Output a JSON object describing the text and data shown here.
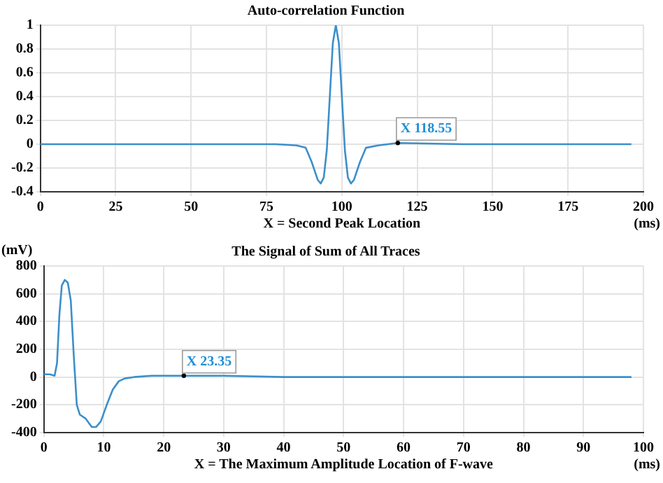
{
  "chart_data": [
    {
      "type": "line",
      "title": "Auto-correlation Function",
      "xlabel": "(ms)",
      "x": [
        0,
        20,
        40,
        60,
        78,
        85,
        88,
        90,
        92,
        93,
        94,
        95,
        96,
        97,
        98,
        99,
        100,
        101,
        102,
        103,
        104,
        106,
        108,
        112,
        118.55,
        140,
        170,
        196
      ],
      "series": [
        {
          "color": "#3b8fcb",
          "values": [
            0,
            0,
            0,
            0,
            0,
            -0.01,
            -0.03,
            -0.15,
            -0.3,
            -0.33,
            -0.28,
            -0.05,
            0.4,
            0.85,
            1.0,
            0.85,
            0.4,
            -0.05,
            -0.28,
            -0.33,
            -0.3,
            -0.15,
            -0.03,
            -0.01,
            0.01,
            0,
            0,
            0
          ]
        }
      ],
      "xlim": [
        0,
        200
      ],
      "xticks": [
        0,
        25,
        50,
        75,
        100,
        125,
        150,
        175,
        200
      ],
      "ylim": [
        -0.4,
        1
      ],
      "yticks": [
        -0.4,
        -0.2,
        0,
        0.2,
        0.4,
        0.6,
        0.8,
        1
      ],
      "grid": true,
      "legend": false,
      "marker": "none",
      "line_style": "solid",
      "annotations": [
        {
          "text": "X 118.55",
          "x": 118.55,
          "y": 0.01
        },
        "X = Second Peak Location"
      ]
    },
    {
      "type": "line",
      "title": "The Signal of Sum of All Traces",
      "xlabel": "(ms)",
      "ylabel": "(mV)",
      "x": [
        0,
        1,
        1.8,
        2.2,
        2.6,
        3,
        3.5,
        4,
        4.5,
        5,
        5.5,
        6,
        7,
        8,
        8.7,
        9.5,
        10.5,
        11.5,
        12.5,
        13.5,
        15,
        18,
        23.35,
        30,
        40,
        60,
        80,
        98
      ],
      "series": [
        {
          "color": "#3b8fcb",
          "values": [
            20,
            20,
            10,
            100,
            450,
            660,
            700,
            680,
            550,
            150,
            -200,
            -270,
            -300,
            -360,
            -360,
            -320,
            -200,
            -90,
            -30,
            -10,
            0,
            10,
            10,
            10,
            0,
            0,
            0,
            0
          ]
        }
      ],
      "xlim": [
        0,
        100
      ],
      "xticks": [
        0,
        10,
        20,
        30,
        40,
        50,
        60,
        70,
        80,
        90,
        100
      ],
      "ylim": [
        -400,
        800
      ],
      "yticks": [
        -400,
        -200,
        0,
        200,
        400,
        600,
        800
      ],
      "grid": true,
      "legend": false,
      "marker": "none",
      "line_style": "solid",
      "annotations": [
        {
          "text": "X 23.35",
          "x": 23.35,
          "y": 10
        },
        "X = The Maximum Amplitude Location of F-wave"
      ]
    }
  ]
}
